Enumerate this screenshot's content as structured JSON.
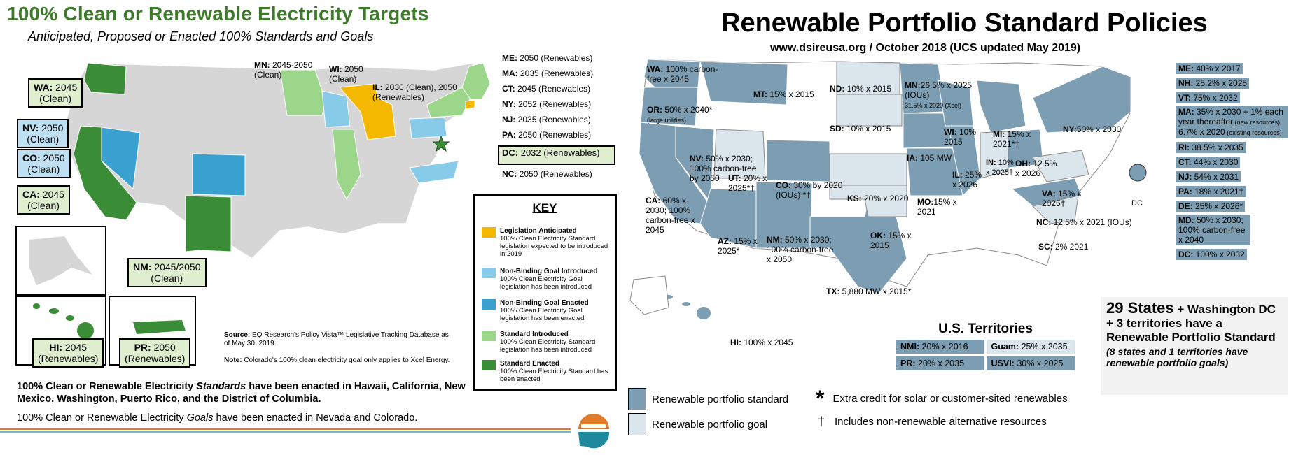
{
  "left": {
    "title": "100% Clean or Renewable Electricity Targets",
    "subtitle": "Anticipated, Proposed or Enacted 100% Standards and Goals",
    "map_labels": {
      "mn": {
        "state": "MN:",
        "text": " 2045-2050 (Clean)"
      },
      "wi": {
        "state": "WI:",
        "text": " 2050 (Clean)"
      },
      "il": {
        "state": "IL:",
        "text": " 2030 (Clean), 2050 (Renewables)"
      }
    },
    "northeast_list": [
      {
        "state": "ME:",
        "text": " 2050 (Renewables)"
      },
      {
        "state": "MA:",
        "text": " 2035 (Renewables)"
      },
      {
        "state": "CT:",
        "text": " 2045 (Renewables)"
      },
      {
        "state": "NY:",
        "text": " 2052 (Renewables)"
      },
      {
        "state": "NJ:",
        "text": " 2035 (Renewables)"
      },
      {
        "state": "PA:",
        "text": " 2050 (Renewables)"
      },
      {
        "state": "DC:",
        "text": " 2032 (Renewables)"
      },
      {
        "state": "NC:",
        "text": " 2050 (Renewables)"
      }
    ],
    "tags": {
      "wa": {
        "state": "WA:",
        "text": " 2045",
        "sub": "(Clean)"
      },
      "nv": {
        "state": "NV:",
        "text": " 2050",
        "sub": "(Clean)"
      },
      "co": {
        "state": "CO:",
        "text": " 2050",
        "sub": "(Clean)"
      },
      "ca": {
        "state": "CA:",
        "text": " 2045",
        "sub": "(Clean)"
      },
      "nm": {
        "state": "NM:",
        "text": " 2045/2050",
        "sub": "(Clean)"
      },
      "hi": {
        "state": "HI:",
        "text": " 2045",
        "sub": "(Renewables)"
      },
      "pr": {
        "state": "PR:",
        "text": " 2050",
        "sub": "(Renewables)"
      }
    },
    "key": {
      "title": "KEY",
      "items": [
        {
          "title": "Legislation Anticipated",
          "desc": "100% Clean Electricity Standard legislation expected to be introduced in 2019",
          "color": "#f5b800"
        },
        {
          "title": "Non-Binding Goal Introduced",
          "desc": "100% Clean Electricity Goal legislation has been introduced",
          "color": "#87cbe8"
        },
        {
          "title": "Non-Binding Goal Enacted",
          "desc": "100% Clean Electricity Goal legislation has been enacted",
          "color": "#3aa0cf"
        },
        {
          "title": "Standard Introduced",
          "desc": "100% Clean Electricity Standard legislation has been introduced",
          "color": "#9bd68a"
        },
        {
          "title": "Standard Enacted",
          "desc": "100% Clean Electricity Standard has been enacted",
          "color": "#3a8c36"
        }
      ]
    },
    "source_label": "Source:",
    "source_text": " EQ Research's Policy Vista™ Legislative Tracking Database as of May 30, 2019.",
    "note_label": "Note:",
    "note_text": " Colorado's 100% clean electricity goal only applies to Xcel Energy.",
    "statement_a": "100% Clean or Renewable Electricity ",
    "statement_a_em": "Standards",
    "statement_a_rest": " have been enacted in Hawaii, California, New Mexico,  Washington, Puerto Rico, and the District of Columbia.",
    "statement_b": "100% Clean or Renewable Electricity ",
    "statement_b_em": "Goals",
    "statement_b_rest": " have been enacted in Nevada and Colorado.",
    "colors": {
      "enacted": "#3a8c36",
      "introduced": "#9bd68a",
      "goal_enacted": "#3aa0cf",
      "goal_introduced": "#87cbe8",
      "anticipated": "#f5b800",
      "base": "#d6d6d6"
    }
  },
  "right": {
    "title": "Renewable Portfolio Standard Policies",
    "subtitle": "www.dsireusa.org / October 2018 (UCS updated May 2019)",
    "map_labels": {
      "wa": {
        "state": "WA:",
        "text": " 100% carbon-free x 2045"
      },
      "or": {
        "state": "OR:",
        "text": " 50% x 2040*",
        "small": "(large utilities)"
      },
      "mt": {
        "state": "MT:",
        "text": " 15% x 2015"
      },
      "nd": {
        "state": "ND:",
        "text": " 10% x 2015"
      },
      "mn": {
        "state": "MN:",
        "text": "26.5% x 2025 (IOUs)",
        "small": "31.5% x 2020 (Xcel)"
      },
      "sd": {
        "state": "SD:",
        "text": " 10% x 2015"
      },
      "wi": {
        "state": "WI:",
        "text": " 10% 2015"
      },
      "mi": {
        "state": "MI:",
        "text": " 15% x 2021*†"
      },
      "ny": {
        "state": "NY:",
        "text": "50% x 2030"
      },
      "nv": {
        "state": "NV:",
        "text": " 50% x 2030; 100% carbon-free by 2050"
      },
      "ut": {
        "state": "UT:",
        "text": " 20% x 2025*†"
      },
      "co": {
        "state": "CO:",
        "text": " 30% by 2020 (IOUs) *†"
      },
      "ia": {
        "state": "IA:",
        "text": " 105 MW"
      },
      "il": {
        "state": "IL:",
        "text": " 25% x 2026"
      },
      "in": {
        "state": "IN:",
        "text": " 10% x 2025†"
      },
      "oh": {
        "state": "OH:",
        "text": " 12.5% x 2026"
      },
      "ca": {
        "state": "CA:",
        "text": " 60% x 2030; 100% carbon-free x 2045"
      },
      "ks": {
        "state": "KS:",
        "text": " 20% x 2020"
      },
      "mo": {
        "state": "MO:",
        "text": "15% x 2021"
      },
      "va": {
        "state": "VA:",
        "text": " 15% x 2025†"
      },
      "dc": {
        "state": "DC"
      },
      "az": {
        "state": "AZ:",
        "text": " 15% x 2025*"
      },
      "nm": {
        "state": "NM:",
        "text": " 50% x 2030; 100% carbon-free x 2050"
      },
      "ok": {
        "state": "OK:",
        "text": " 15% x 2015"
      },
      "nc": {
        "state": "NC:",
        "text": " 12.5% x 2021 (IOUs)"
      },
      "sc": {
        "state": "SC:",
        "text": " 2% 2021"
      },
      "tx": {
        "state": "TX:",
        "text": " 5,880 MW x 2015*"
      },
      "hi": {
        "state": "HI:",
        "text": " 100% x 2045"
      }
    },
    "northeast_list": [
      {
        "state": "ME:",
        "text": " 40% x 2017"
      },
      {
        "state": "NH:",
        "text": " 25.2% x 2025"
      },
      {
        "state": "VT:",
        "text": " 75% x 2032"
      },
      {
        "state": "MA:",
        "text": " 35% x 2030 + 1% each year thereafter",
        "small": " (new resources)",
        "extra": "6.7% x 2020",
        "small2": " (existing resources)"
      },
      {
        "state": "RI:",
        "text": " 38.5% x 2035"
      },
      {
        "state": "CT:",
        "text": " 44% x 2030"
      },
      {
        "state": "NJ:",
        "text": " 54% x 2031"
      },
      {
        "state": "PA:",
        "text": " 18% x 2021†"
      },
      {
        "state": "DE:",
        "text": " 25% x 2026*"
      },
      {
        "state": "MD:",
        "text": " 50% x 2030; 100% carbon-free x 2040"
      },
      {
        "state": "DC:",
        "text": " 100% x 2032"
      }
    ],
    "territories": {
      "title": "U.S. Territories",
      "items": [
        {
          "state": "NMI:",
          "text": " 20% x 2016",
          "type": "standard"
        },
        {
          "state": "Guam:",
          "text": " 25% x 2035",
          "type": "goal"
        },
        {
          "state": "PR:",
          "text": " 20% x 2035",
          "type": "standard"
        },
        {
          "state": "USVI:",
          "text": " 30% x 2025",
          "type": "standard"
        }
      ]
    },
    "summary": {
      "big": "29 States",
      "rest": " + Washington DC + 3 territories have a Renewable Portfolio Standard",
      "note": "(8 states and 1 territories have renewable portfolio goals)"
    },
    "legend": {
      "standard": "Renewable portfolio standard",
      "goal": "Renewable portfolio goal",
      "asterisk_symbol": "*",
      "asterisk": "Extra credit for solar or customer-sited renewables",
      "dagger_symbol": "†",
      "dagger": "Includes non-renewable alternative resources"
    },
    "colors": {
      "standard": "#7d9eb2",
      "goal": "#dbe6ec",
      "none": "#ffffff",
      "border": "#888888"
    }
  }
}
